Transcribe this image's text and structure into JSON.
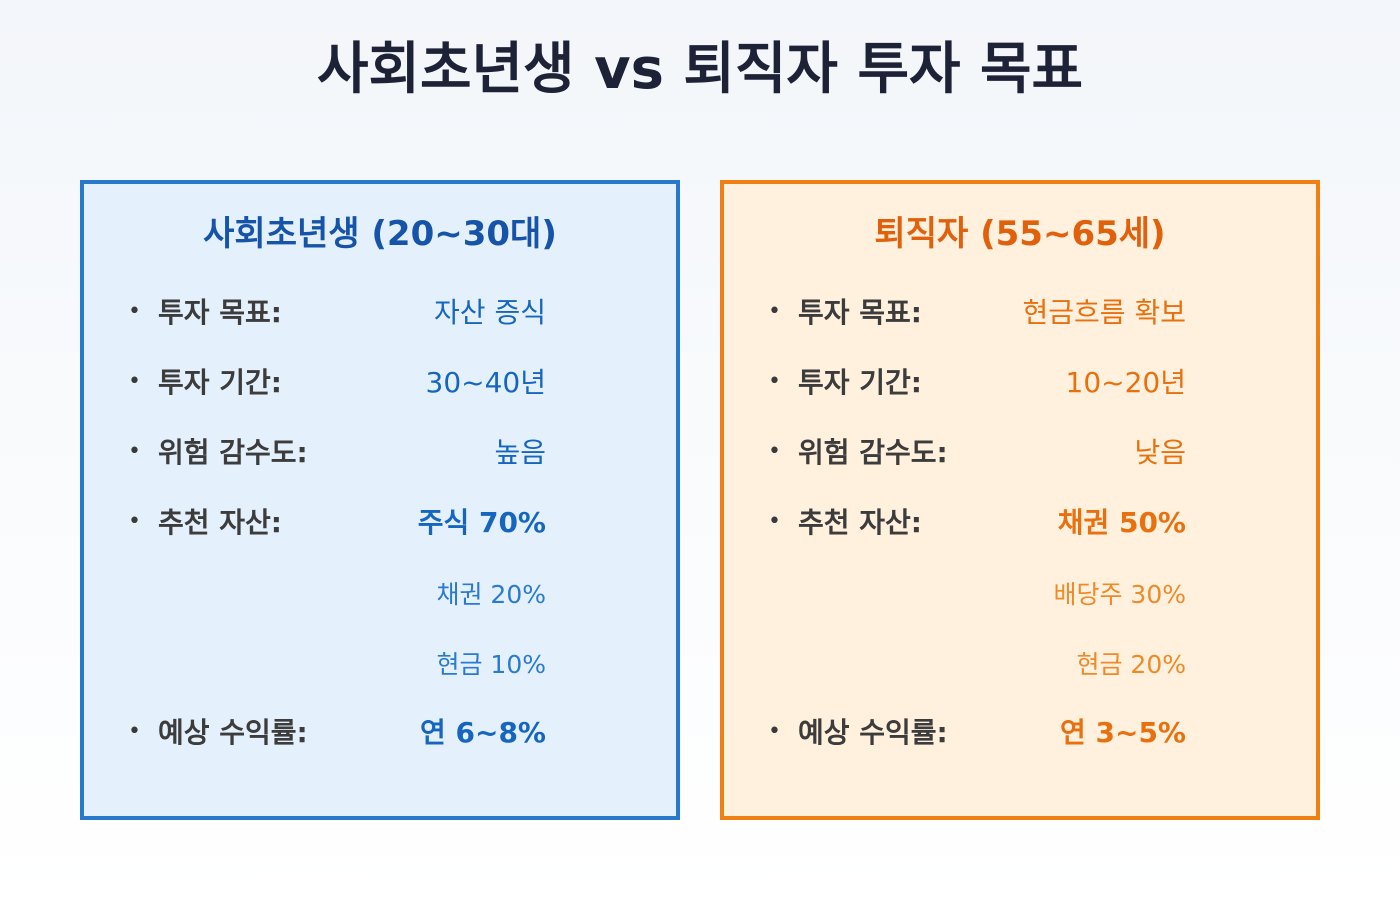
{
  "title": "사회초년생 vs 퇴직자 투자 목표",
  "colors": {
    "young_accent": "#2878cc",
    "young_background": "#e4f1fc",
    "retiree_accent": "#ef8114",
    "retiree_background": "#fff1de"
  },
  "young": {
    "heading": "사회초년생 (20~30대)",
    "goal_label": "투자 목표:",
    "goal_value": "자산 증식",
    "period_label": "투자 기간:",
    "period_value": "30~40년",
    "risk_label": "위험 감수도:",
    "risk_value": "높음",
    "assets_label": "추천 자산:",
    "asset_1": "주식 70%",
    "asset_2": "채권 20%",
    "asset_3": "현금 10%",
    "return_label": "예상 수익률:",
    "return_value": "연 6~8%"
  },
  "retiree": {
    "heading": "퇴직자 (55~65세)",
    "goal_label": "투자 목표:",
    "goal_value": "현금흐름 확보",
    "period_label": "투자 기간:",
    "period_value": "10~20년",
    "risk_label": "위험 감수도:",
    "risk_value": "낮음",
    "assets_label": "추천 자산:",
    "asset_1": "채권 50%",
    "asset_2": "배당주 30%",
    "asset_3": "현금 20%",
    "return_label": "예상 수익률:",
    "return_value": "연 3~5%"
  }
}
